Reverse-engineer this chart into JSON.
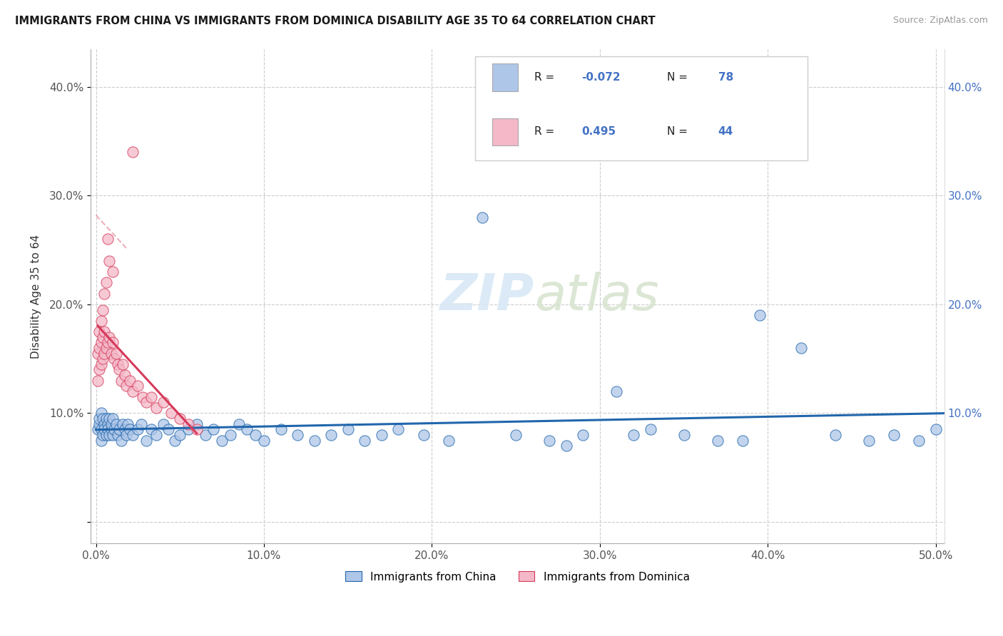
{
  "title": "IMMIGRANTS FROM CHINA VS IMMIGRANTS FROM DOMINICA DISABILITY AGE 35 TO 64 CORRELATION CHART",
  "source": "Source: ZipAtlas.com",
  "ylabel": "Disability Age 35 to 64",
  "xlim": [
    -0.003,
    0.505
  ],
  "ylim": [
    -0.02,
    0.435
  ],
  "xticks": [
    0.0,
    0.1,
    0.2,
    0.3,
    0.4,
    0.5
  ],
  "xticklabels": [
    "0.0%",
    "10.0%",
    "20.0%",
    "30.0%",
    "40.0%",
    "50.0%"
  ],
  "yticks": [
    0.0,
    0.1,
    0.2,
    0.3,
    0.4
  ],
  "yticklabels_left": [
    "",
    "10.0%",
    "20.0%",
    "30.0%",
    "40.0%"
  ],
  "yticklabels_right": [
    "",
    "10.0%",
    "20.0%",
    "30.0%",
    "40.0%"
  ],
  "legend_label1": "Immigrants from China",
  "legend_label2": "Immigrants from Dominica",
  "r1": "-0.072",
  "n1": "78",
  "r2": "0.495",
  "n2": "44",
  "color1": "#aec6e8",
  "color2": "#f4b8c8",
  "line_color1": "#2166ac",
  "line_color2": "#d63a5a",
  "watermark": "ZIPatlas",
  "china_x": [
    0.001,
    0.002,
    0.002,
    0.003,
    0.003,
    0.003,
    0.004,
    0.004,
    0.005,
    0.005,
    0.006,
    0.006,
    0.007,
    0.007,
    0.008,
    0.008,
    0.009,
    0.009,
    0.01,
    0.01,
    0.011,
    0.012,
    0.013,
    0.014,
    0.015,
    0.016,
    0.017,
    0.018,
    0.019,
    0.02,
    0.022,
    0.025,
    0.027,
    0.03,
    0.033,
    0.036,
    0.04,
    0.043,
    0.047,
    0.05,
    0.055,
    0.06,
    0.065,
    0.07,
    0.075,
    0.08,
    0.085,
    0.09,
    0.095,
    0.1,
    0.11,
    0.12,
    0.13,
    0.14,
    0.15,
    0.16,
    0.17,
    0.18,
    0.195,
    0.21,
    0.23,
    0.25,
    0.27,
    0.29,
    0.31,
    0.33,
    0.35,
    0.37,
    0.395,
    0.42,
    0.44,
    0.46,
    0.475,
    0.49,
    0.5,
    0.28,
    0.32,
    0.385
  ],
  "china_y": [
    0.085,
    0.09,
    0.095,
    0.075,
    0.085,
    0.1,
    0.08,
    0.095,
    0.09,
    0.085,
    0.095,
    0.08,
    0.09,
    0.085,
    0.095,
    0.08,
    0.085,
    0.09,
    0.08,
    0.095,
    0.085,
    0.09,
    0.08,
    0.085,
    0.075,
    0.09,
    0.085,
    0.08,
    0.09,
    0.085,
    0.08,
    0.085,
    0.09,
    0.075,
    0.085,
    0.08,
    0.09,
    0.085,
    0.075,
    0.08,
    0.085,
    0.09,
    0.08,
    0.085,
    0.075,
    0.08,
    0.09,
    0.085,
    0.08,
    0.075,
    0.085,
    0.08,
    0.075,
    0.08,
    0.085,
    0.075,
    0.08,
    0.085,
    0.08,
    0.075,
    0.28,
    0.08,
    0.075,
    0.08,
    0.12,
    0.085,
    0.08,
    0.075,
    0.19,
    0.16,
    0.08,
    0.075,
    0.08,
    0.075,
    0.085,
    0.07,
    0.08,
    0.075
  ],
  "dominica_x": [
    0.001,
    0.001,
    0.002,
    0.002,
    0.002,
    0.003,
    0.003,
    0.003,
    0.004,
    0.004,
    0.004,
    0.005,
    0.005,
    0.005,
    0.006,
    0.006,
    0.007,
    0.007,
    0.008,
    0.008,
    0.009,
    0.01,
    0.01,
    0.011,
    0.012,
    0.013,
    0.014,
    0.015,
    0.016,
    0.017,
    0.018,
    0.02,
    0.022,
    0.025,
    0.028,
    0.03,
    0.033,
    0.036,
    0.04,
    0.045,
    0.05,
    0.055,
    0.06,
    0.022
  ],
  "dominica_y": [
    0.13,
    0.155,
    0.14,
    0.16,
    0.175,
    0.145,
    0.165,
    0.185,
    0.15,
    0.17,
    0.195,
    0.155,
    0.175,
    0.21,
    0.16,
    0.22,
    0.165,
    0.26,
    0.17,
    0.24,
    0.155,
    0.165,
    0.23,
    0.15,
    0.155,
    0.145,
    0.14,
    0.13,
    0.145,
    0.135,
    0.125,
    0.13,
    0.12,
    0.125,
    0.115,
    0.11,
    0.115,
    0.105,
    0.11,
    0.1,
    0.095,
    0.09,
    0.085,
    0.34
  ],
  "dom_trend_x": [
    0.001,
    0.06
  ],
  "dom_trend_y_start": 0.085,
  "dom_trend_y_end": 0.29
}
